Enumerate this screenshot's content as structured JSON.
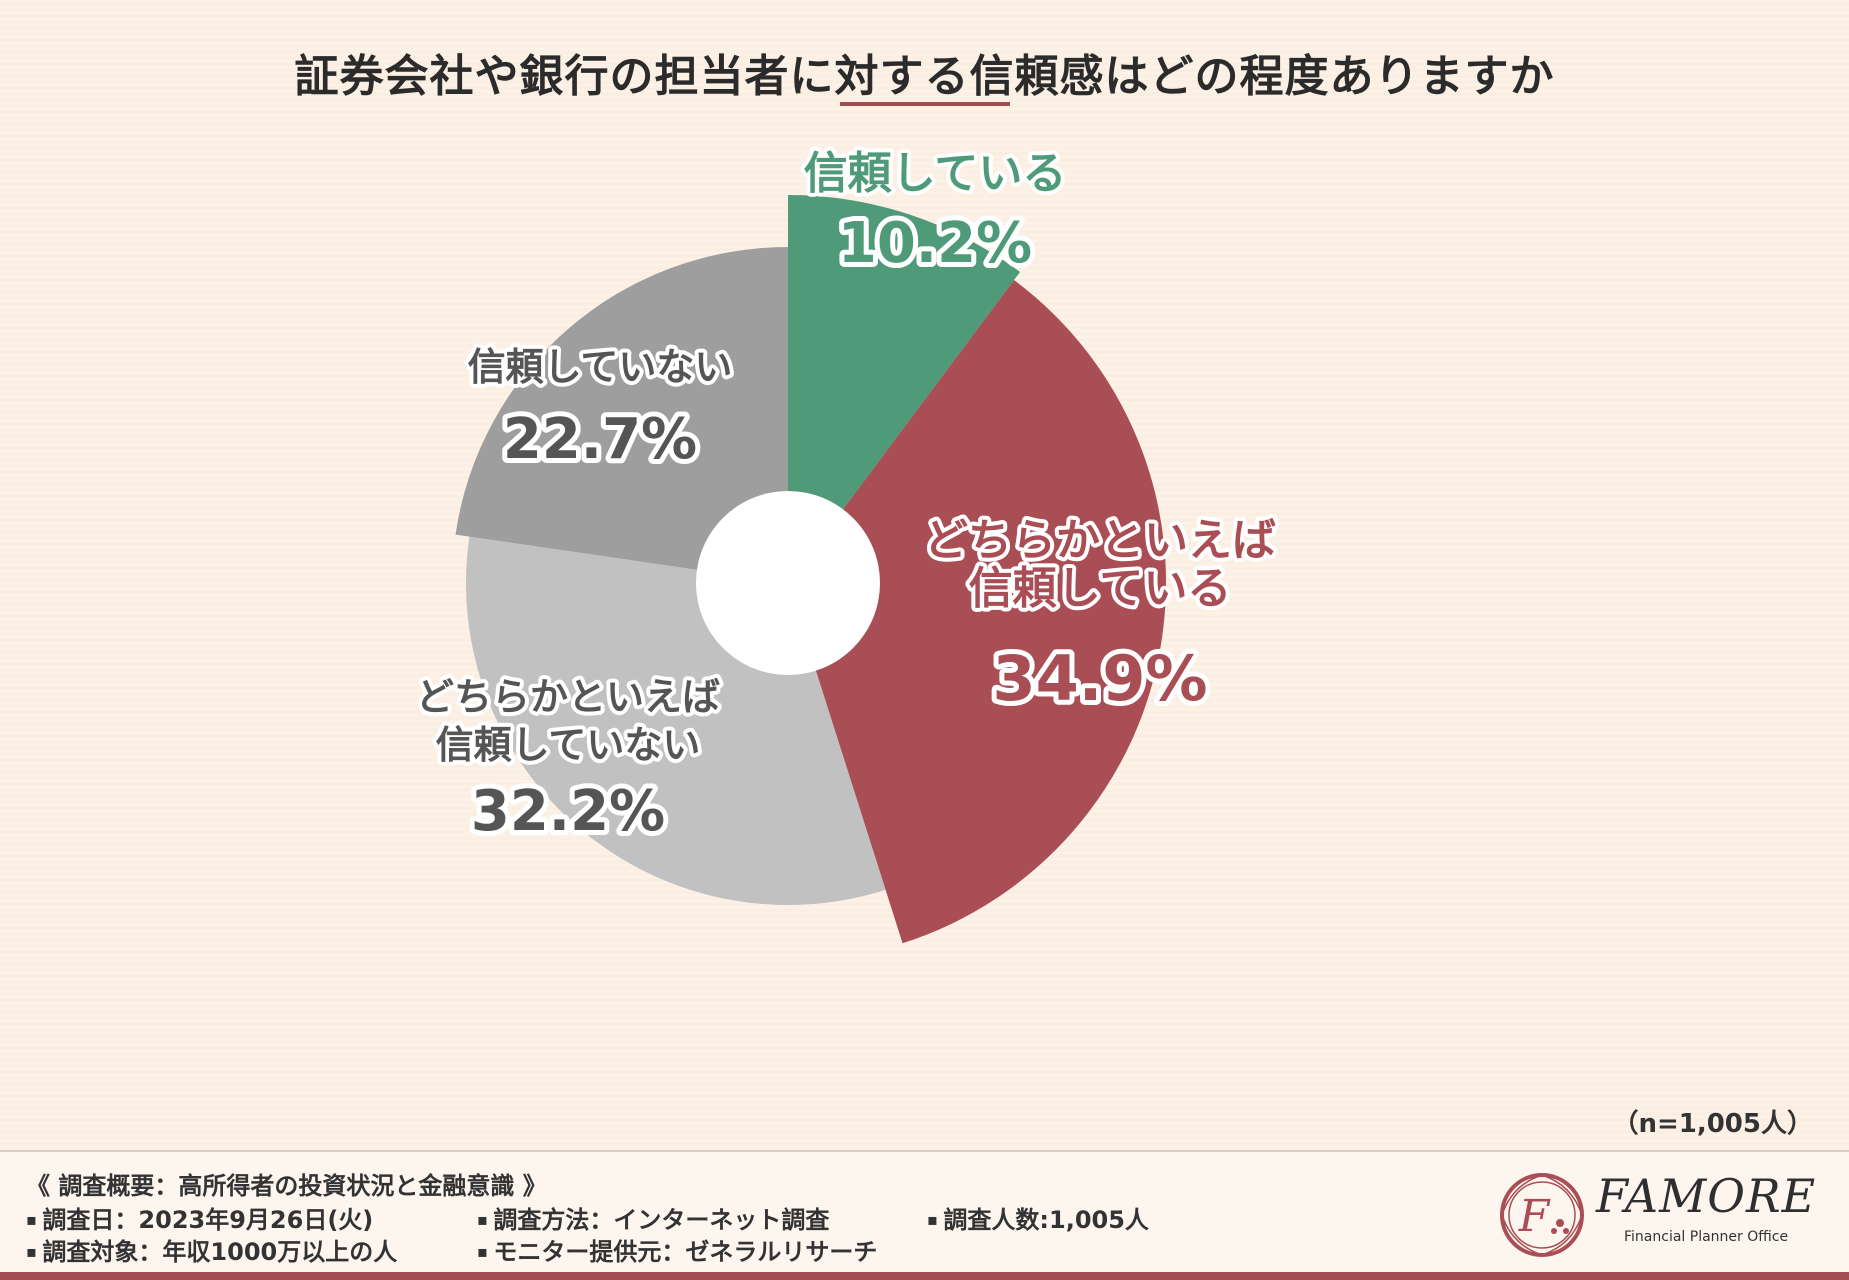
{
  "title": "証券会社や銀行の担当者に対する信頼感はどの程度ありますか",
  "n_label": "（n=1,005人）",
  "chart_data": {
    "type": "pie",
    "title": "証券会社や銀行の担当者に対する信頼感はどの程度ありますか",
    "categories": [
      "信頼している",
      "どちらかといえば信頼している",
      "どちらかといえば信頼していない",
      "信頼していない"
    ],
    "values": [
      10.2,
      34.9,
      32.2,
      22.7
    ],
    "value_labels": [
      "10.2%",
      "34.9%",
      "32.2%",
      "22.7%"
    ],
    "colors": [
      "#4f9a79",
      "#a94e55",
      "#c1c1c1",
      "#9e9e9e"
    ],
    "label_lines": [
      [
        "信頼している"
      ],
      [
        "どちらかといえば",
        "信頼している"
      ],
      [
        "どちらかといえば",
        "信頼していない"
      ],
      [
        "信頼していない"
      ]
    ],
    "label_colors": [
      "#4f9a79",
      "#a94e55",
      "#555555",
      "#555555"
    ],
    "start": "top, clockwise",
    "hole": true
  },
  "footer": {
    "overview": "《 調査概要：高所得者の投資状況と金融意識 》",
    "date": "調査日：2023年9月26日(火)",
    "method": "調査方法：インターネット調査",
    "count": "調査人数:1,005人",
    "target": "調査対象：年収1000万以上の人",
    "provider": "モニター提供元：ゼネラルリサーチ"
  },
  "logo": {
    "name": "FAMORE",
    "sub": "Financial Planner Office",
    "mark": "F"
  }
}
